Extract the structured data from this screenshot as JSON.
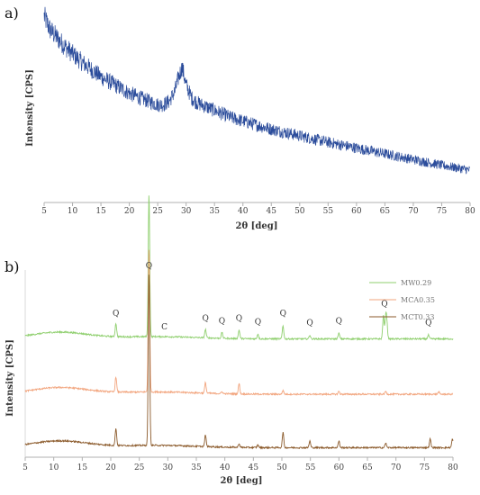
{
  "chart_data": [
    {
      "panel": "a)",
      "type": "line",
      "ylabel": "Intensity [CPS]",
      "xlabel": "2θ [deg]",
      "xlim": [
        5,
        80
      ],
      "xticks": [
        5,
        10,
        15,
        20,
        25,
        30,
        35,
        40,
        45,
        50,
        55,
        60,
        65,
        70,
        75,
        80
      ],
      "series": [
        {
          "color": "#2b4c9b",
          "x": [
            5,
            6,
            8,
            10,
            12,
            15,
            18,
            20,
            22,
            25,
            26,
            27,
            28,
            28.7,
            29.3,
            30,
            31,
            32,
            34,
            36,
            38,
            40,
            45,
            50,
            55,
            60,
            65,
            70,
            75,
            80
          ],
          "y": [
            100,
            92,
            84,
            77,
            71,
            63,
            57,
            53,
            50,
            46,
            46,
            48,
            54,
            63,
            69,
            58,
            50,
            47,
            44,
            41,
            38,
            36,
            31,
            27,
            23,
            19.5,
            16,
            12.5,
            9,
            6
          ]
        }
      ]
    },
    {
      "panel": "b)",
      "type": "line",
      "ylabel": "Intensity [CPS]",
      "xlabel": "2θ [deg]",
      "xlim": [
        5,
        80
      ],
      "xticks": [
        5,
        10,
        15,
        20,
        25,
        30,
        35,
        40,
        45,
        50,
        55,
        60,
        65,
        70,
        75,
        80
      ],
      "legend_position": "top-right",
      "series": [
        {
          "name": "MW0.29",
          "color": "#8fcf6e",
          "offset": 0.62,
          "peaks": [
            [
              20.9,
              0.07
            ],
            [
              26.7,
              0.75
            ],
            [
              36.6,
              0.045
            ],
            [
              39.5,
              0.03
            ],
            [
              42.5,
              0.045
            ],
            [
              45.8,
              0.025
            ],
            [
              50.2,
              0.07
            ],
            [
              54.9,
              0.02
            ],
            [
              60.0,
              0.03
            ],
            [
              67.8,
              0.12
            ],
            [
              68.2,
              0.11
            ],
            [
              68.4,
              0.08
            ],
            [
              75.7,
              0.02
            ]
          ]
        },
        {
          "name": "MCA0.35",
          "color": "#f2a57e",
          "offset": 0.33,
          "peaks": [
            [
              20.9,
              0.08
            ],
            [
              26.7,
              0.75
            ],
            [
              36.6,
              0.055
            ],
            [
              39.5,
              0.01
            ],
            [
              42.5,
              0.055
            ],
            [
              50.2,
              0.02
            ],
            [
              60.0,
              0.015
            ],
            [
              68.2,
              0.015
            ],
            [
              77.5,
              0.012
            ]
          ]
        },
        {
          "name": "MCT0.33",
          "color": "#8b5a2b",
          "offset": 0.05,
          "peaks": [
            [
              20.9,
              0.09
            ],
            [
              26.7,
              0.9
            ],
            [
              36.6,
              0.06
            ],
            [
              42.5,
              0.02
            ],
            [
              45.8,
              0.015
            ],
            [
              50.2,
              0.08
            ],
            [
              54.9,
              0.035
            ],
            [
              60.0,
              0.035
            ],
            [
              68.2,
              0.025
            ],
            [
              76.0,
              0.045
            ],
            [
              79.9,
              0.045
            ]
          ]
        }
      ],
      "annotations": [
        {
          "text": "Q",
          "x": 20.9
        },
        {
          "text": "Q",
          "x": 26.7
        },
        {
          "text": "C",
          "x": 29.4
        },
        {
          "text": "Q",
          "x": 36.6
        },
        {
          "text": "Q",
          "x": 39.5
        },
        {
          "text": "Q",
          "x": 42.5
        },
        {
          "text": "Q",
          "x": 45.8
        },
        {
          "text": "Q",
          "x": 50.2
        },
        {
          "text": "Q",
          "x": 54.9
        },
        {
          "text": "Q",
          "x": 60.0
        },
        {
          "text": "Q",
          "x": 68.0
        },
        {
          "text": "Q",
          "x": 75.7
        }
      ]
    }
  ]
}
